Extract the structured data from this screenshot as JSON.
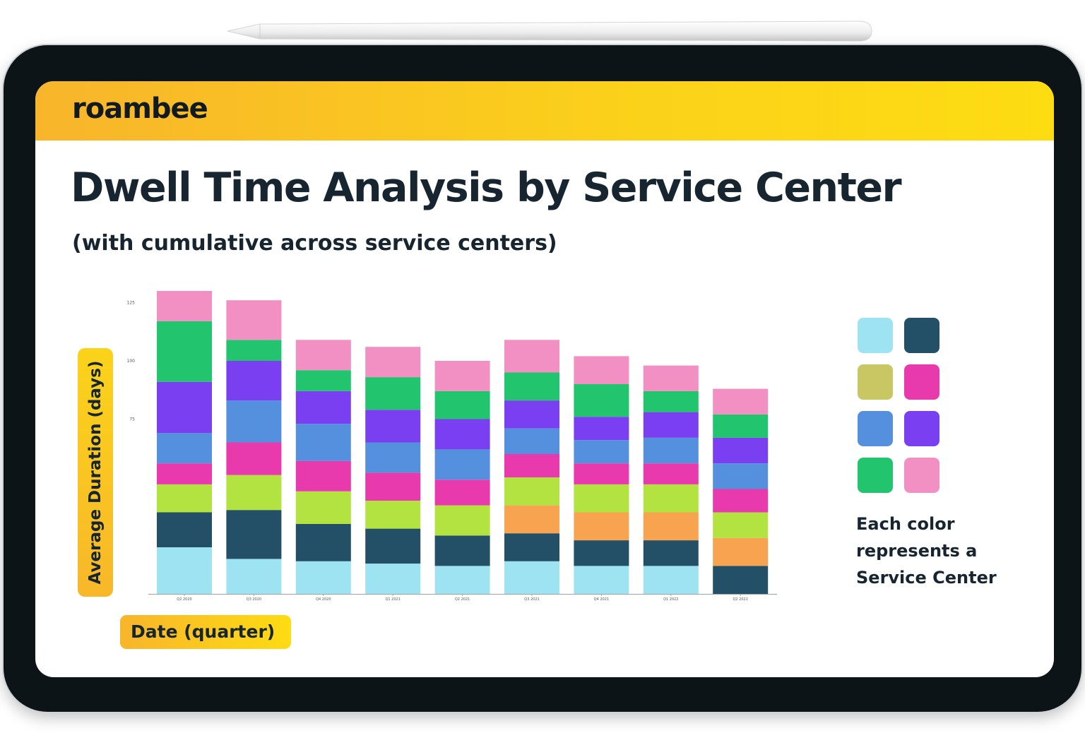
{
  "brand": {
    "logo_text": "roambee"
  },
  "colors": {
    "accent_yellow": "#fbd21a",
    "text_dark": "#16252f",
    "device_bezel": "#0d1418"
  },
  "slide": {
    "title": "Dwell Time Analysis by Service Center",
    "subtitle": "(with cumulative across service centers)"
  },
  "axis_labels": {
    "y": "Average Duration (days)",
    "x": "Date (quarter)"
  },
  "legend": {
    "swatches": [
      "#9ee3f1",
      "#235066",
      "#c9c763",
      "#e83aad",
      "#5590df",
      "#7b3ff2",
      "#22c56e",
      "#f28fc3"
    ],
    "caption_lines": [
      "Each color",
      "represents a",
      "Service Center"
    ]
  },
  "chart_data": {
    "type": "bar",
    "stacked": true,
    "categories": [
      "Q2 2020",
      "Q3 2020",
      "Q4 2020",
      "Q1 2021",
      "Q2 2021",
      "Q3 2021",
      "Q4 2021",
      "Q1 2022",
      "Q2 2022"
    ],
    "ylabel": "Average Duration (days)",
    "xlabel": "Date (quarter)",
    "yticks": [
      75,
      100,
      125
    ],
    "ylim": [
      0,
      130
    ],
    "series": [
      {
        "color": "#9ee3f1",
        "values": [
          20,
          15,
          14,
          13,
          12,
          14,
          12,
          12,
          0
        ]
      },
      {
        "color": "#235066",
        "values": [
          15,
          21,
          16,
          15,
          13,
          12,
          11,
          11,
          12
        ]
      },
      {
        "color": "#f7a350",
        "values": [
          0,
          0,
          0,
          0,
          0,
          12,
          12,
          12,
          12
        ]
      },
      {
        "color": "#b2e341",
        "values": [
          12,
          15,
          14,
          12,
          13,
          12,
          12,
          12,
          11
        ]
      },
      {
        "color": "#e83aad",
        "values": [
          9,
          14,
          13,
          12,
          11,
          10,
          9,
          9,
          10
        ]
      },
      {
        "color": "#5590df",
        "values": [
          13,
          18,
          16,
          13,
          13,
          11,
          10,
          11,
          11
        ]
      },
      {
        "color": "#7b3ff2",
        "values": [
          22,
          17,
          14,
          14,
          13,
          12,
          10,
          11,
          11
        ]
      },
      {
        "color": "#22c56e",
        "values": [
          26,
          9,
          9,
          14,
          12,
          12,
          14,
          9,
          10
        ]
      },
      {
        "color": "#f28fc3",
        "values": [
          13,
          17,
          13,
          13,
          13,
          14,
          12,
          11,
          11
        ]
      }
    ]
  }
}
